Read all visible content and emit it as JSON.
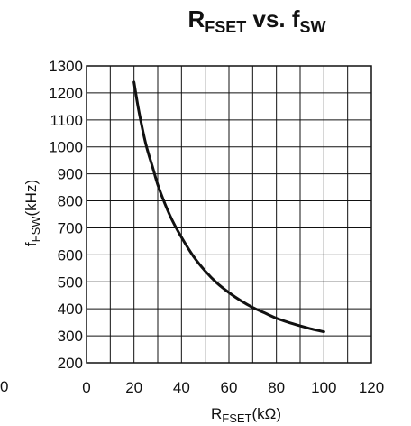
{
  "chart_data": {
    "type": "line",
    "title_main": "R",
    "title_main_sub": "FSET",
    "title_mid": " vs. f",
    "title_mid_sub": "SW",
    "xlabel_main": "R",
    "xlabel_sub": "FSET",
    "xlabel_unit": "(kΩ)",
    "ylabel_main": "f",
    "ylabel_sub": "FSW",
    "ylabel_unit": "(kHz)",
    "xlim": [
      0,
      120
    ],
    "ylim": [
      200,
      1300
    ],
    "x_ticks": [
      0,
      20,
      40,
      60,
      80,
      100,
      120
    ],
    "y_ticks": [
      200,
      300,
      400,
      500,
      600,
      700,
      800,
      900,
      1000,
      1100,
      1200,
      1300
    ],
    "x_tick_labels": [
      "0",
      "20",
      "40",
      "60",
      "80",
      "100",
      "120"
    ],
    "y_tick_labels": [
      "200",
      "300",
      "400",
      "500",
      "600",
      "700",
      "800",
      "900",
      "1000",
      "1100",
      "1200",
      "1300"
    ],
    "stray_label": "0",
    "grid": true,
    "series": [
      {
        "x": [
          20,
          22,
          25,
          28,
          30,
          33,
          36,
          40,
          45,
          50,
          55,
          60,
          65,
          70,
          75,
          80,
          85,
          90,
          95,
          100
        ],
        "y": [
          1240,
          1135,
          1010,
          920,
          860,
          790,
          730,
          665,
          595,
          540,
          495,
          460,
          430,
          405,
          385,
          365,
          350,
          337,
          325,
          315
        ]
      }
    ]
  }
}
